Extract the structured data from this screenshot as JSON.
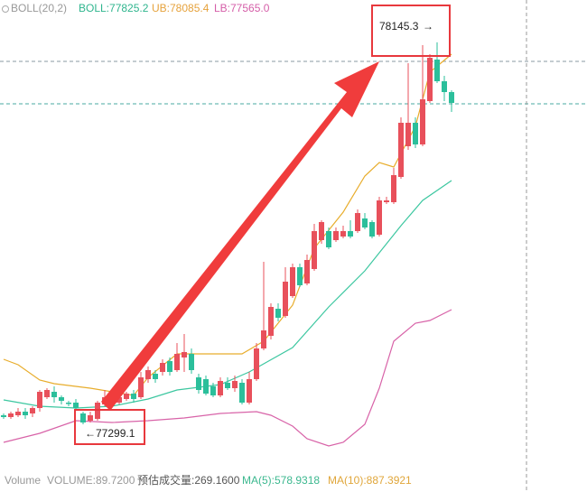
{
  "chart_data": {
    "type": "candlestick",
    "indicator_labels": {
      "name": "BOLL(20,2)",
      "mid": "BOLL:77825.2",
      "upper": "UB:78085.4",
      "lower": "LB:77565.0"
    },
    "volume_labels": {
      "title": "Volume",
      "volume": "VOLUME:89.7200",
      "estimate": "预估成交量:269.1600",
      "ma5": "MA(5):578.9318",
      "ma10": "MA(10):887.3921"
    },
    "up_color": "#e8505b",
    "down_color": "#2bbf9b",
    "ylim": [
      77149.1,
      78239.1
    ],
    "ohlc": [
      [
        77319.1,
        77323.1,
        77311.1,
        77315.1
      ],
      [
        77315.1,
        77327.1,
        77311.1,
        77323.1
      ],
      [
        77319.1,
        77335.1,
        77315.1,
        77327.1
      ],
      [
        77327.1,
        77335.1,
        77311.1,
        77319.1
      ],
      [
        77323.1,
        77339.1,
        77315.1,
        77335.1
      ],
      [
        77335.1,
        77375.1,
        77327.1,
        77371.1
      ],
      [
        77359.1,
        77379.1,
        77355.1,
        77375.1
      ],
      [
        77371.1,
        77383.1,
        77347.1,
        77359.1
      ],
      [
        77359.1,
        77363.1,
        77343.1,
        77351.1
      ],
      [
        77347.1,
        77351.1,
        77339.1,
        77345.1
      ],
      [
        77347.1,
        77355.1,
        77329.1,
        77335.1
      ],
      [
        77323.1,
        77327.1,
        77299.1,
        77303.1
      ],
      [
        77307.1,
        77327.1,
        77303.1,
        77319.1
      ],
      [
        77311.1,
        77351.1,
        77307.1,
        77347.1
      ],
      [
        77343.1,
        77375.1,
        77339.1,
        77359.1
      ],
      [
        77355.1,
        77363.1,
        77335.1,
        77343.1
      ],
      [
        77347.1,
        77363.1,
        77343.1,
        77359.1
      ],
      [
        77355.1,
        77371.1,
        77351.1,
        77367.1
      ],
      [
        77367.1,
        77375.1,
        77347.1,
        77355.1
      ],
      [
        77359.1,
        77415.1,
        77355.1,
        77403.1
      ],
      [
        77399.1,
        77427.1,
        77391.1,
        77419.1
      ],
      [
        77411.1,
        77419.1,
        77391.1,
        77399.1
      ],
      [
        77415.1,
        77443.1,
        77407.1,
        77435.1
      ],
      [
        77439.1,
        77447.1,
        77407.1,
        77415.1
      ],
      [
        77419.1,
        77479.1,
        77415.1,
        77455.1
      ],
      [
        77447.1,
        77499.1,
        77415.1,
        77459.1
      ],
      [
        77455.1,
        77467.1,
        77411.1,
        77419.1
      ],
      [
        77403.1,
        77411.1,
        77367.1,
        77375.1
      ],
      [
        77399.1,
        77407.1,
        77363.1,
        77367.1
      ],
      [
        77383.1,
        77391.1,
        77359.1,
        77363.1
      ],
      [
        77363.1,
        77403.1,
        77359.1,
        77395.1
      ],
      [
        77391.1,
        77403.1,
        77375.1,
        77379.1
      ],
      [
        77379.1,
        77407.1,
        77371.1,
        77395.1
      ],
      [
        77391.1,
        77399.1,
        77343.1,
        77347.1
      ],
      [
        77347.1,
        77415.1,
        77343.1,
        77399.1
      ],
      [
        77399.1,
        77479.1,
        77395.1,
        77467.1
      ],
      [
        77467.1,
        77659.1,
        77463.1,
        77507.1
      ],
      [
        77495.1,
        77567.1,
        77487.1,
        77559.1
      ],
      [
        77555.1,
        77567.1,
        77527.1,
        77535.1
      ],
      [
        77539.1,
        77647.1,
        77535.1,
        77615.1
      ],
      [
        77583.1,
        77655.1,
        77579.1,
        77647.1
      ],
      [
        77647.1,
        77655.1,
        77603.1,
        77607.1
      ],
      [
        77611.1,
        77675.1,
        77607.1,
        77663.1
      ],
      [
        77643.1,
        77743.1,
        77639.1,
        77727.1
      ],
      [
        77707.1,
        77751.1,
        77699.1,
        77747.1
      ],
      [
        77727.1,
        77735.1,
        77687.1,
        77691.1
      ],
      [
        77707.1,
        77735.1,
        77703.1,
        77727.1
      ],
      [
        77715.1,
        77739.1,
        77711.1,
        77727.1
      ],
      [
        77727.1,
        77751.1,
        77711.1,
        77715.1
      ],
      [
        77727.1,
        77775.1,
        77723.1,
        77767.1
      ],
      [
        77755.1,
        77767.1,
        77731.1,
        77735.1
      ],
      [
        77747.1,
        77751.1,
        77711.1,
        77715.1
      ],
      [
        77719.1,
        77803.1,
        77715.1,
        77795.1
      ],
      [
        77791.1,
        77803.1,
        77787.1,
        77795.1
      ],
      [
        77791.1,
        77867.1,
        77787.1,
        77851.1
      ],
      [
        77847.1,
        77979.1,
        77843.1,
        77967.1
      ],
      [
        77915.1,
        78099.1,
        77907.1,
        77967.1
      ],
      [
        77967.1,
        77979.1,
        77911.1,
        77919.1
      ],
      [
        77919.1,
        78139.1,
        77915.1,
        78019.1
      ],
      [
        78015.1,
        78119.1,
        78011.1,
        78111.1
      ],
      [
        78107.1,
        78145.3,
        78055.1,
        78059.1
      ],
      [
        78059.1,
        78071.1,
        78015.1,
        78035.1
      ],
      [
        78035.1,
        78039.1,
        77991.1,
        78011.1
      ]
    ],
    "series": [
      {
        "name": "UB",
        "color": "#e8ad2c",
        "x": [
          0,
          2,
          5,
          7,
          12,
          18,
          20,
          24,
          33,
          36,
          40,
          43,
          47,
          50,
          52,
          54,
          57,
          59,
          62
        ],
        "values": [
          77443.1,
          77431.1,
          77397.1,
          77389.1,
          77379.1,
          77363.1,
          77403.1,
          77455.1,
          77455.1,
          77483.1,
          77563.1,
          77689.1,
          77769.1,
          77849.1,
          77879.1,
          77869.1,
          77959.1,
          78079.1,
          78119.1
        ]
      },
      {
        "name": "BOLL",
        "color": "#3cc7a0",
        "x": [
          0,
          5,
          10,
          15,
          20,
          24,
          30,
          34,
          40,
          45,
          50,
          55,
          58,
          62
        ],
        "values": [
          77353.1,
          77339.1,
          77335.1,
          77339.1,
          77355.1,
          77375.1,
          77387.1,
          77415.1,
          77469.1,
          77559.1,
          77639.1,
          77739.1,
          77795.1,
          77839.1
        ]
      },
      {
        "name": "LB",
        "color": "#d863a8",
        "x": [
          0,
          5,
          10,
          15,
          20,
          25,
          30,
          35,
          37,
          40,
          42,
          45,
          47,
          50,
          52,
          54,
          57,
          59,
          62
        ],
        "values": [
          77259.1,
          77279.1,
          77307.1,
          77303.1,
          77307.1,
          77313.1,
          77323.1,
          77327.1,
          77319.1,
          77295.1,
          77267.1,
          77251.1,
          77259.1,
          77299.1,
          77379.1,
          77483.1,
          77523.1,
          77529.1,
          77553.1
        ]
      }
    ]
  }
}
